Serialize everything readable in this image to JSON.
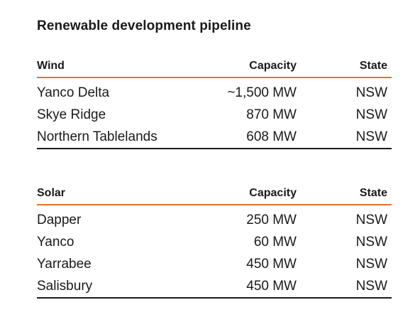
{
  "title": "Renewable development pipeline",
  "accent_color": "#e8722c",
  "rule_color": "#1a1a1a",
  "wind": {
    "headers": {
      "name": "Wind",
      "capacity": "Capacity",
      "state": "State"
    },
    "rows": [
      {
        "name": "Yanco Delta",
        "capacity": "~1,500 MW",
        "state": "NSW"
      },
      {
        "name": "Skye Ridge",
        "capacity": "870 MW",
        "state": "NSW"
      },
      {
        "name": "Northern Tablelands",
        "capacity": "608 MW",
        "state": "NSW"
      }
    ]
  },
  "solar": {
    "headers": {
      "name": "Solar",
      "capacity": "Capacity",
      "state": "State"
    },
    "rows": [
      {
        "name": "Dapper",
        "capacity": "250 MW",
        "state": "NSW"
      },
      {
        "name": "Yanco",
        "capacity": "60 MW",
        "state": "NSW"
      },
      {
        "name": "Yarrabee",
        "capacity": "450 MW",
        "state": "NSW"
      },
      {
        "name": "Salisbury",
        "capacity": "450 MW",
        "state": "NSW"
      }
    ]
  }
}
